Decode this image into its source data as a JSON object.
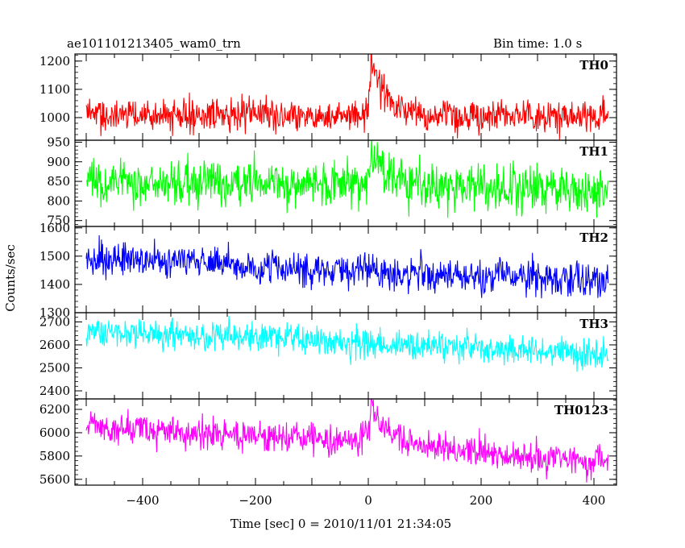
{
  "header": {
    "title": "ae101101213405_wam0_trn",
    "bin_time": "Bin time: 1.0 s"
  },
  "chart_data": {
    "type": "line",
    "title": "ae101101213405_wam0_trn",
    "subtitle": "Bin time: 1.0 s",
    "xlabel": "Time [sec] 0 = 2010/11/01 21:34:05",
    "ylabel": "Counts/sec",
    "xlim": [
      -520,
      440
    ],
    "x_range": [
      -500,
      425
    ],
    "x_ticks": [
      -400,
      -200,
      0,
      200,
      400
    ],
    "x_tick_labels": [
      "−400",
      "−200",
      "0",
      "200",
      "400"
    ],
    "legend": "none",
    "panels": [
      {
        "name": "TH0",
        "color": "#ff0000",
        "ylim": [
          920,
          1225
        ],
        "y_ticks": [
          1000,
          1100,
          1200
        ],
        "baseline": [
          [
            -500,
            1010
          ],
          [
            0,
            1005
          ],
          [
            425,
            1005
          ]
        ],
        "noise": 40,
        "burst": {
          "peak_time": 5,
          "peak_value": 1200,
          "amplitude": 190,
          "rise": 4,
          "decay": 28
        }
      },
      {
        "name": "TH1",
        "color": "#00ff00",
        "ylim": [
          735,
          955
        ],
        "y_ticks": [
          750,
          800,
          850,
          900,
          950
        ],
        "baseline": [
          [
            -500,
            850
          ],
          [
            0,
            845
          ],
          [
            425,
            825
          ]
        ],
        "noise": 40,
        "burst": {
          "peak_time": 5,
          "peak_value": 940,
          "amplitude": 95,
          "rise": 4,
          "decay": 22
        }
      },
      {
        "name": "TH2",
        "color": "#0000ff",
        "ylim": [
          1300,
          1605
        ],
        "y_ticks": [
          1300,
          1400,
          1500,
          1600
        ],
        "baseline": [
          [
            -500,
            1495
          ],
          [
            0,
            1445
          ],
          [
            425,
            1415
          ]
        ],
        "noise": 42,
        "burst": null
      },
      {
        "name": "TH3",
        "color": "#00ffff",
        "ylim": [
          2365,
          2740
        ],
        "y_ticks": [
          2400,
          2500,
          2600,
          2700
        ],
        "baseline": [
          [
            -500,
            2660
          ],
          [
            0,
            2610
          ],
          [
            425,
            2555
          ]
        ],
        "noise": 45,
        "burst": null
      },
      {
        "name": "TH0123",
        "color": "#ff00ff",
        "ylim": [
          5550,
          6290
        ],
        "y_ticks": [
          5600,
          5800,
          6000,
          6200
        ],
        "baseline": [
          [
            -500,
            6050
          ],
          [
            0,
            5930
          ],
          [
            425,
            5730
          ]
        ],
        "noise": 95,
        "burst": {
          "peak_time": 5,
          "peak_value": 6250,
          "amplitude": 300,
          "rise": 4,
          "decay": 30
        }
      }
    ]
  }
}
